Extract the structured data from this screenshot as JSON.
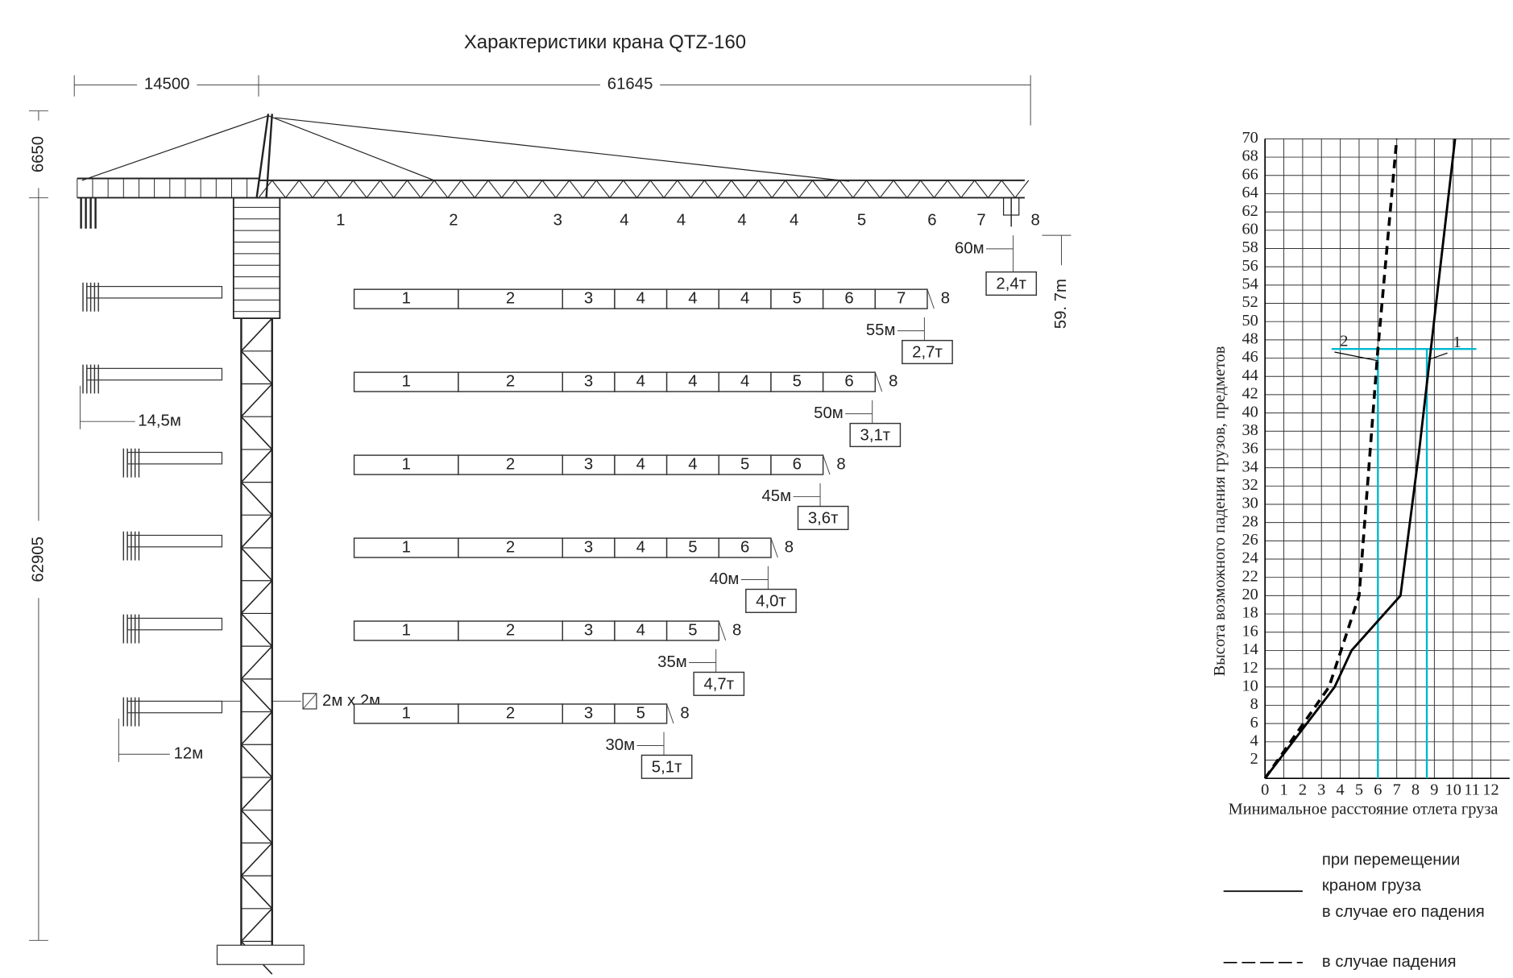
{
  "drawing": {
    "title": "Характеристики крана QTZ-160",
    "dimensions": {
      "counter_jib": "14500",
      "jib": "61645",
      "top": "6650",
      "height": "62905",
      "hook_height": "59. 7m",
      "counter_jib_long": "14,5м",
      "counter_jib_short": "12м",
      "section": "2м x 2м"
    },
    "jib_sections": [
      "1",
      "2",
      "3",
      "4",
      "4",
      "4",
      "4",
      "5",
      "6",
      "7",
      "8"
    ],
    "top_config": {
      "radius": "60м",
      "load": "2,4т"
    },
    "configs": [
      {
        "sections": [
          "1",
          "2",
          "3",
          "4",
          "4",
          "4",
          "5",
          "6",
          "7"
        ],
        "end": "8",
        "radius": "55м",
        "load": "2,7т"
      },
      {
        "sections": [
          "1",
          "2",
          "3",
          "4",
          "4",
          "4",
          "5",
          "6"
        ],
        "end": "8",
        "radius": "50м",
        "load": "3,1т"
      },
      {
        "sections": [
          "1",
          "2",
          "3",
          "4",
          "4",
          "5",
          "6"
        ],
        "end": "8",
        "radius": "45м",
        "load": "3,6т"
      },
      {
        "sections": [
          "1",
          "2",
          "3",
          "4",
          "5",
          "6"
        ],
        "end": "8",
        "radius": "40м",
        "load": "4,0т"
      },
      {
        "sections": [
          "1",
          "2",
          "3",
          "4",
          "5"
        ],
        "end": "8",
        "radius": "35м",
        "load": "4,7т"
      },
      {
        "sections": [
          "1",
          "2",
          "3",
          "5"
        ],
        "end": "8",
        "radius": "30м",
        "load": "5,1т"
      }
    ]
  },
  "chart_data": {
    "type": "line",
    "xlabel": "Минимальное расстояние отлета груза",
    "ylabel": "Высота возможного падения грузов, предметов",
    "xlim": [
      0,
      13
    ],
    "ylim": [
      0,
      70
    ],
    "xticks": [
      0,
      1,
      2,
      3,
      4,
      5,
      6,
      7,
      8,
      9,
      10,
      11,
      12
    ],
    "yticks": [
      2,
      4,
      6,
      8,
      10,
      12,
      14,
      16,
      18,
      20,
      22,
      24,
      26,
      28,
      30,
      32,
      34,
      36,
      38,
      40,
      42,
      44,
      46,
      48,
      50,
      52,
      54,
      56,
      58,
      60,
      62,
      64,
      66,
      68,
      70
    ],
    "grid": true,
    "series": [
      {
        "name": "1",
        "color": "#000000",
        "style": "solid",
        "x": [
          0,
          3.7,
          4.6,
          7.2,
          8.2,
          10.1
        ],
        "values": [
          0,
          10,
          14,
          20,
          36,
          70
        ]
      },
      {
        "name": "2",
        "color": "#000000",
        "style": "dashed",
        "x": [
          0,
          3.4,
          5.0,
          6.0,
          7.0
        ],
        "values": [
          0,
          10,
          20,
          47,
          70
        ]
      }
    ],
    "reference_lines": {
      "color": "#00b8d0",
      "y": 47,
      "x": [
        6.0,
        8.6
      ]
    },
    "legend": [
      {
        "style": "solid",
        "lines": [
          "при перемещении",
          "краном груза",
          "в случае его падения"
        ]
      },
      {
        "style": "dashed",
        "lines": [
          "в случае падения"
        ]
      }
    ]
  }
}
